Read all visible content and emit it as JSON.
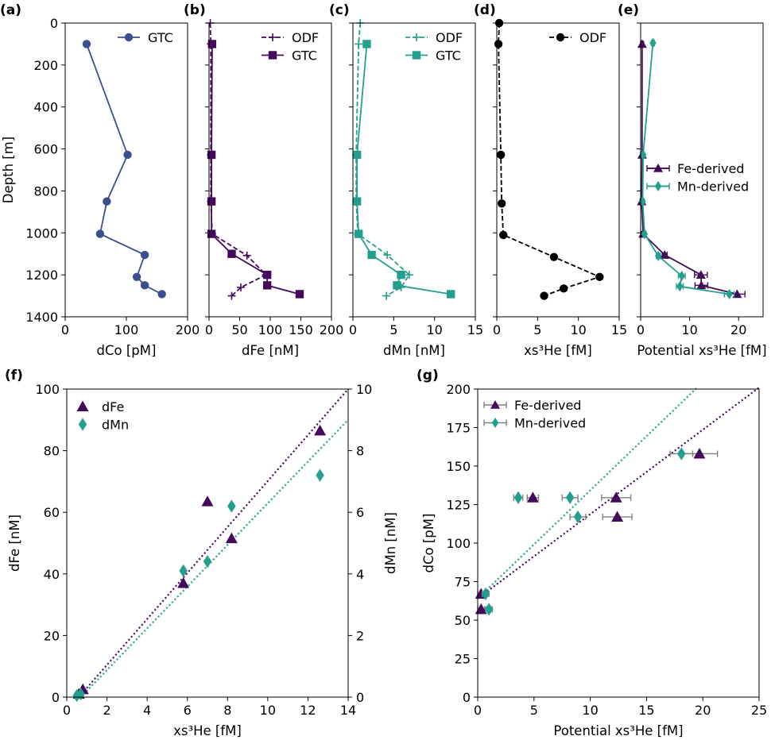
{
  "colors": {
    "gtc_co": "#3b4e8e",
    "purple": "#44095a",
    "teal": "#23a08d",
    "black": "#000000",
    "errorbar": "#7f7f7f"
  },
  "chart_data": [
    {
      "id": "a",
      "panel_label": "(a)",
      "type": "line",
      "xlabel": "dCo [pM]",
      "ylabel": "Depth [m]",
      "xlim": [
        0,
        200
      ],
      "ylim": [
        1400,
        0
      ],
      "xticks": [
        0,
        100,
        200
      ],
      "yticks": [
        0,
        200,
        400,
        600,
        800,
        1000,
        1200,
        1400
      ],
      "legend": "upper-right",
      "series": [
        {
          "name": "GTC",
          "style": "solid",
          "marker": "circle",
          "color": "#3b4e8e",
          "points": [
            [
              35,
              100
            ],
            [
              102,
              628
            ],
            [
              68,
              850
            ],
            [
              57,
              1005
            ],
            [
              130,
              1105
            ],
            [
              117,
              1210
            ],
            [
              130,
              1250
            ],
            [
              158,
              1292
            ]
          ]
        }
      ]
    },
    {
      "id": "b",
      "panel_label": "(b)",
      "type": "line",
      "xlabel": "dFe [nM]",
      "xlim": [
        0,
        200
      ],
      "ylim": [
        1400,
        0
      ],
      "xticks": [
        0,
        50,
        100,
        150,
        200
      ],
      "legend": "upper-right",
      "series": [
        {
          "name": "ODF",
          "style": "dashed",
          "marker": "plus",
          "color": "#44095a",
          "points": [
            [
              2,
              0
            ],
            [
              3,
              100
            ],
            [
              3,
              628
            ],
            [
              3,
              850
            ],
            [
              5,
              1005
            ],
            [
              62,
              1108
            ],
            [
              93,
              1200
            ],
            [
              52,
              1260
            ],
            [
              37,
              1300
            ]
          ]
        },
        {
          "name": "GTC",
          "style": "solid",
          "marker": "square",
          "color": "#44095a",
          "points": [
            [
              5,
              100
            ],
            [
              4,
              628
            ],
            [
              4,
              850
            ],
            [
              4,
              1005
            ],
            [
              37,
              1100
            ],
            [
              95,
              1200
            ],
            [
              95,
              1250
            ],
            [
              148,
              1292
            ]
          ]
        }
      ]
    },
    {
      "id": "c",
      "panel_label": "(c)",
      "type": "line",
      "xlabel": "dMn [nM]",
      "xlim": [
        0,
        15
      ],
      "ylim": [
        1400,
        0
      ],
      "xticks": [
        0,
        5,
        10,
        15
      ],
      "legend": "upper-right",
      "series": [
        {
          "name": "ODF",
          "style": "dashed",
          "marker": "plus",
          "color": "#23a08d",
          "points": [
            [
              0.9,
              0
            ],
            [
              0.7,
              100
            ],
            [
              0.4,
              628
            ],
            [
              0.4,
              850
            ],
            [
              0.6,
              1005
            ],
            [
              4.2,
              1105
            ],
            [
              6.9,
              1200
            ],
            [
              5.9,
              1260
            ],
            [
              4.1,
              1300
            ]
          ]
        },
        {
          "name": "GTC",
          "style": "solid",
          "marker": "square",
          "color": "#23a08d",
          "points": [
            [
              1.7,
              100
            ],
            [
              0.5,
              628
            ],
            [
              0.5,
              850
            ],
            [
              0.7,
              1005
            ],
            [
              2.3,
              1105
            ],
            [
              5.9,
              1200
            ],
            [
              5.4,
              1250
            ],
            [
              12.0,
              1292
            ]
          ]
        }
      ]
    },
    {
      "id": "d",
      "panel_label": "(d)",
      "type": "line",
      "xlabel": "xs³He [fM]",
      "xlim": [
        0,
        15
      ],
      "ylim": [
        1400,
        0
      ],
      "xticks": [
        0,
        5,
        10,
        15
      ],
      "legend": "upper-right",
      "series": [
        {
          "name": "ODF",
          "style": "dashed",
          "marker": "circle",
          "color": "#000000",
          "points": [
            [
              0.3,
              0
            ],
            [
              0.2,
              100
            ],
            [
              0.5,
              628
            ],
            [
              0.6,
              860
            ],
            [
              0.8,
              1010
            ],
            [
              7.0,
              1115
            ],
            [
              12.6,
              1210
            ],
            [
              8.2,
              1265
            ],
            [
              5.8,
              1300
            ]
          ]
        }
      ]
    },
    {
      "id": "e",
      "panel_label": "(e)",
      "type": "line",
      "xlabel": "Potential xs³He [fM]",
      "xlim": [
        0,
        25
      ],
      "ylim": [
        1400,
        0
      ],
      "xticks": [
        0,
        10,
        20
      ],
      "legend": "center-right",
      "series": [
        {
          "name": "Fe-derived",
          "style": "solid",
          "marker": "triangle",
          "color": "#44095a",
          "points": [
            [
              0.3,
              100
            ],
            [
              0.3,
              628
            ],
            [
              0.2,
              850
            ],
            [
              0.5,
              1005
            ],
            [
              4.9,
              1105
            ],
            [
              12.3,
              1200
            ],
            [
              12.4,
              1250
            ],
            [
              19.7,
              1292
            ]
          ],
          "xerr": [
            0.3,
            0.3,
            0.3,
            0.3,
            0.5,
            1.3,
            1.3,
            1.6
          ]
        },
        {
          "name": "Mn-derived",
          "style": "solid",
          "marker": "diamond",
          "color": "#23a08d",
          "points": [
            [
              2.5,
              95
            ],
            [
              0.5,
              628
            ],
            [
              0.4,
              850
            ],
            [
              0.8,
              1005
            ],
            [
              3.6,
              1110
            ],
            [
              8.4,
              1205
            ],
            [
              8.0,
              1255
            ],
            [
              18.1,
              1292
            ]
          ],
          "xerr": [
            0.3,
            0.3,
            0.3,
            0.3,
            0.4,
            0.7,
            0.7,
            1.0
          ]
        }
      ]
    },
    {
      "id": "f",
      "panel_label": "(f)",
      "type": "scatter",
      "xlabel": "xs³He [fM]",
      "ylabel": "dFe [nM]",
      "y2label": "dMn [nM]",
      "xlim": [
        0,
        14
      ],
      "ylim": [
        0,
        100
      ],
      "y2lim": [
        0,
        10
      ],
      "xticks": [
        0,
        2,
        4,
        6,
        8,
        10,
        12,
        14
      ],
      "yticks": [
        0,
        20,
        40,
        60,
        80,
        100
      ],
      "y2ticks": [
        0,
        2,
        4,
        6,
        8,
        10
      ],
      "legend": "upper-left",
      "series": [
        {
          "name": "dFe",
          "axis": "left",
          "marker": "triangle",
          "color": "#44095a",
          "points": [
            [
              0.6,
              1.0
            ],
            [
              0.8,
              2.5
            ],
            [
              5.8,
              37
            ],
            [
              7.0,
              63.5
            ],
            [
              8.2,
              51.5
            ],
            [
              12.6,
              86.5
            ]
          ],
          "fit": [
            [
              0.6,
              0
            ],
            [
              14,
              100
            ]
          ]
        },
        {
          "name": "dMn",
          "axis": "right",
          "marker": "diamond",
          "color": "#23a08d",
          "points": [
            [
              0.5,
              0.05
            ],
            [
              0.7,
              0.1
            ],
            [
              5.8,
              4.1
            ],
            [
              7.0,
              4.4
            ],
            [
              8.2,
              6.2
            ],
            [
              12.6,
              7.2
            ]
          ],
          "fit": [
            [
              0.7,
              0
            ],
            [
              14,
              9.0
            ]
          ]
        }
      ]
    },
    {
      "id": "g",
      "panel_label": "(g)",
      "type": "scatter",
      "xlabel": "Potential xs³He [fM]",
      "ylabel": "dCo [pM]",
      "xlim": [
        0,
        25
      ],
      "ylim": [
        0,
        200
      ],
      "xticks": [
        0,
        5,
        10,
        15,
        20,
        25
      ],
      "yticks": [
        0,
        25,
        50,
        75,
        100,
        125,
        150,
        175,
        200
      ],
      "legend": "upper-left",
      "series": [
        {
          "name": "Fe-derived",
          "marker": "triangle",
          "color": "#44095a",
          "points": [
            [
              0.3,
              57
            ],
            [
              0.3,
              67
            ],
            [
              4.9,
              129.5
            ],
            [
              12.3,
              129.5
            ],
            [
              12.4,
              117
            ],
            [
              19.7,
              158
            ]
          ],
          "xerr": [
            0.3,
            0.3,
            0.5,
            1.3,
            1.3,
            1.6
          ],
          "fit": [
            [
              0,
              64
            ],
            [
              25,
              201
            ]
          ]
        },
        {
          "name": "Mn-derived",
          "marker": "diamond",
          "color": "#23a08d",
          "points": [
            [
              1.0,
              57
            ],
            [
              0.7,
              67
            ],
            [
              3.6,
              129.5
            ],
            [
              8.2,
              129.5
            ],
            [
              8.9,
              117
            ],
            [
              18.1,
              158
            ]
          ],
          "xerr": [
            0.3,
            0.3,
            0.4,
            0.7,
            0.7,
            1.0
          ],
          "fit": [
            [
              0,
              64
            ],
            [
              19.5,
              201
            ]
          ]
        }
      ]
    }
  ]
}
